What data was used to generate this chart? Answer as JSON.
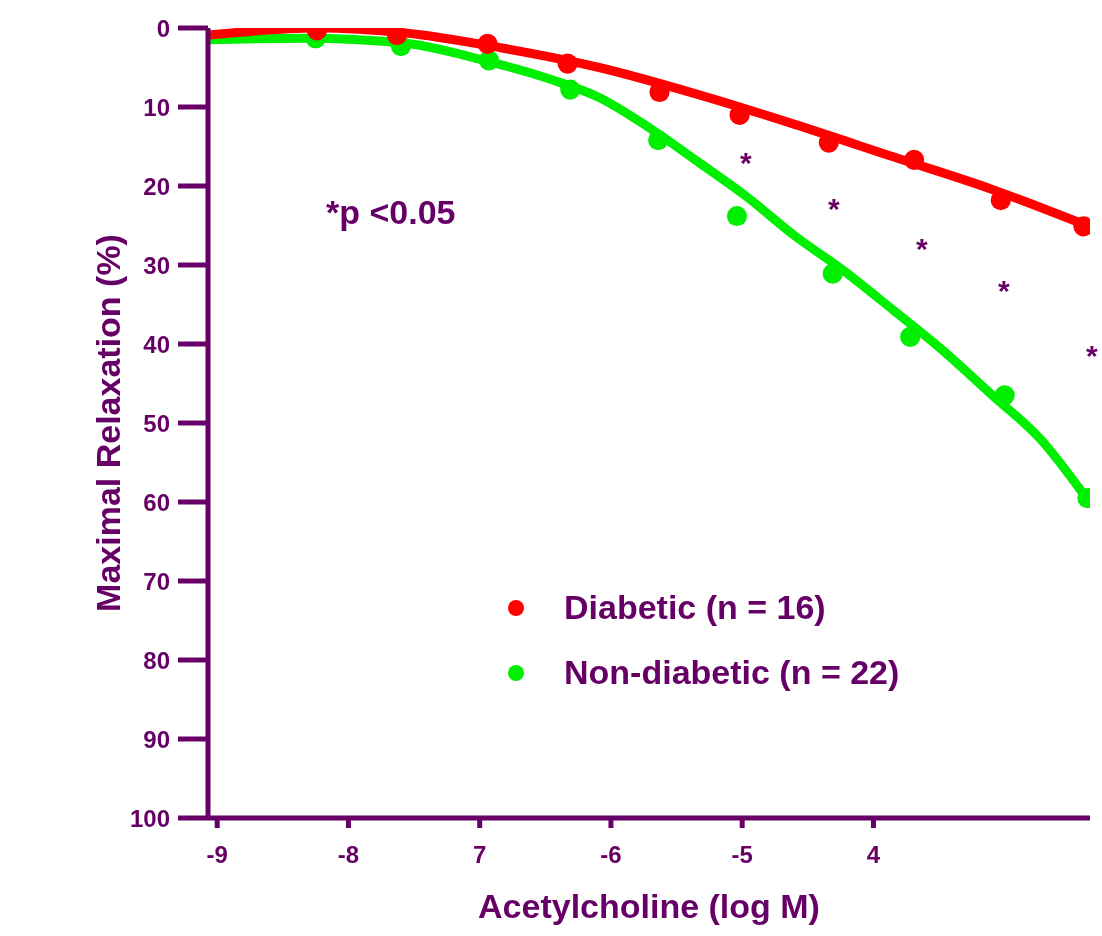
{
  "chart_data": {
    "type": "scatter",
    "xlabel": "Acetylcholine (log M)",
    "ylabel": "Maximal Relaxation (%)",
    "xlim": [
      -9.07,
      -2.35
    ],
    "ylim": [
      100,
      0
    ],
    "xticks": [
      {
        "value": -9,
        "label": "-9"
      },
      {
        "value": -8,
        "label": "-8"
      },
      {
        "value": -7,
        "label": "7"
      },
      {
        "value": -6,
        "label": "-6"
      },
      {
        "value": -5,
        "label": "-5"
      },
      {
        "value": -4,
        "label": "4"
      }
    ],
    "yticks": [
      0,
      10,
      20,
      30,
      40,
      50,
      60,
      70,
      80,
      90,
      100
    ],
    "line_style": "solid",
    "grid": false,
    "legend": "bottom",
    "series": [
      {
        "name": "Diabetic (n = 16)",
        "marker": "circle",
        "color": "#ff0000",
        "x": [
          -8.24,
          -7.63,
          -6.94,
          -6.33,
          -5.63,
          -5.02,
          -4.34,
          -3.69,
          -3.03,
          -2.4
        ],
        "values": [
          0.3,
          0.9,
          2.0,
          4.5,
          8.1,
          11.0,
          14.5,
          16.7,
          21.8,
          25.1
        ]
      },
      {
        "name": "Non-diabetic (n = 22)",
        "marker": "circle",
        "color": "#00ee00",
        "x": [
          -8.25,
          -7.6,
          -6.93,
          -6.31,
          -5.64,
          -5.04,
          -4.31,
          -3.72,
          -3.0,
          -2.37
        ],
        "values": [
          1.3,
          2.3,
          4.1,
          7.8,
          14.2,
          23.8,
          31.1,
          39.1,
          46.5,
          59.5
        ]
      },
      {
        "type": "line",
        "color": "#ff0000",
        "x": [
          -9.07,
          -8.24,
          -7.58,
          -6.84,
          -6.09,
          -5.34,
          -4.6,
          -3.85,
          -3.1,
          -2.36
        ],
        "values": [
          0.9,
          0,
          0.6,
          2.5,
          5,
          8.4,
          12.2,
          16.3,
          20.4,
          25.1
        ]
      },
      {
        "type": "line",
        "color": "#00ee00",
        "x": [
          -9.07,
          -8.33,
          -7.58,
          -6.99,
          -6.46,
          -6.09,
          -5.72,
          -5.34,
          -4.97,
          -4.6,
          -4.22,
          -3.85,
          -3.48,
          -3.1,
          -2.73,
          -2.36
        ],
        "values": [
          1.5,
          1.3,
          1.9,
          4,
          6.5,
          8.8,
          12.5,
          16.9,
          21.3,
          26.3,
          30.8,
          35.7,
          40.7,
          46.4,
          52,
          59.9
        ]
      }
    ],
    "annotations": [
      "*p <0.05",
      "*",
      "*",
      "*",
      "*",
      "*"
    ]
  }
}
